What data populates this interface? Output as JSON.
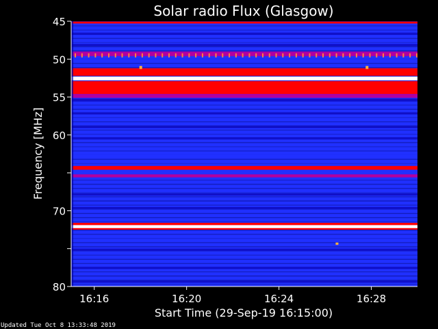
{
  "chart_data": {
    "type": "heatmap",
    "title": "Solar radio Flux (Glasgow)",
    "xlabel": "Start Time (29-Sep-19 16:15:00)",
    "ylabel": "Frequency [MHz]",
    "x_ticks": [
      "16:16",
      "16:20",
      "16:24",
      "16:28"
    ],
    "x_tick_minutes": [
      1,
      5,
      9,
      13
    ],
    "xlim_minutes": [
      0,
      15
    ],
    "y_ticks": [
      45,
      50,
      55,
      60,
      65,
      70,
      75,
      80
    ],
    "y_tick_labels": [
      "45",
      "50",
      "55",
      "60",
      "",
      "70",
      "",
      "80"
    ],
    "ylim": [
      45,
      80
    ],
    "y_inverted": true,
    "colormap": [
      "#000060",
      "#1010c8",
      "#2030ff",
      "#b000a0",
      "#ff0000",
      "#ffff80",
      "#ffffff"
    ],
    "bands": [
      {
        "freq": [
          45.05,
          45.3
        ],
        "level": 3.5
      },
      {
        "freq": [
          46.5,
          46.8
        ],
        "level": 1.3
      },
      {
        "freq": [
          48.0,
          48.3
        ],
        "level": 1.3
      },
      {
        "freq": [
          49.0,
          49.6
        ],
        "level": 2.5
      },
      {
        "freq": [
          50.0,
          50.4
        ],
        "level": 1.8
      },
      {
        "freq": [
          51.2,
          52.2
        ],
        "level": 4.0
      },
      {
        "freq": [
          52.3,
          52.8
        ],
        "level": 5.6
      },
      {
        "freq": [
          52.9,
          54.6
        ],
        "level": 4.0
      },
      {
        "freq": [
          54.6,
          55.1
        ],
        "level": 2.6
      },
      {
        "freq": [
          55.2,
          55.6
        ],
        "level": 1.4
      },
      {
        "freq": [
          57.0,
          57.3
        ],
        "level": 1.4
      },
      {
        "freq": [
          58.8,
          59.1
        ],
        "level": 1.4
      },
      {
        "freq": [
          60.3,
          60.6
        ],
        "level": 1.4
      },
      {
        "freq": [
          62.6,
          62.9
        ],
        "level": 1.5
      },
      {
        "freq": [
          63.4,
          63.7
        ],
        "level": 1.6
      },
      {
        "freq": [
          64.1,
          64.6
        ],
        "level": 4.0
      },
      {
        "freq": [
          64.6,
          65.2
        ],
        "level": 2.0
      },
      {
        "freq": [
          65.2,
          65.6
        ],
        "level": 3.3
      },
      {
        "freq": [
          67.7,
          68.0
        ],
        "level": 1.3
      },
      {
        "freq": [
          69.5,
          69.8
        ],
        "level": 1.3
      },
      {
        "freq": [
          71.6,
          71.9
        ],
        "level": 4.2
      },
      {
        "freq": [
          71.9,
          72.3
        ],
        "level": 6.0
      },
      {
        "freq": [
          72.3,
          72.5
        ],
        "level": 4.2
      },
      {
        "freq": [
          75.0,
          75.3
        ],
        "level": 1.3
      },
      {
        "freq": [
          77.4,
          77.7
        ],
        "level": 1.3
      },
      {
        "freq": [
          79.2,
          79.5
        ],
        "level": 1.3
      }
    ],
    "bursts": [
      {
        "minute": 3.0,
        "freq": [
          50.9,
          51.3
        ]
      },
      {
        "minute": 12.8,
        "freq": [
          50.9,
          51.3
        ]
      },
      {
        "minute": 11.5,
        "freq": [
          74.2,
          74.5
        ]
      }
    ],
    "spike_row_freq": 49.5,
    "spike_spacing_minutes": 0.29,
    "footer": "Updated Tue Oct  8 13:33:48 2019"
  }
}
